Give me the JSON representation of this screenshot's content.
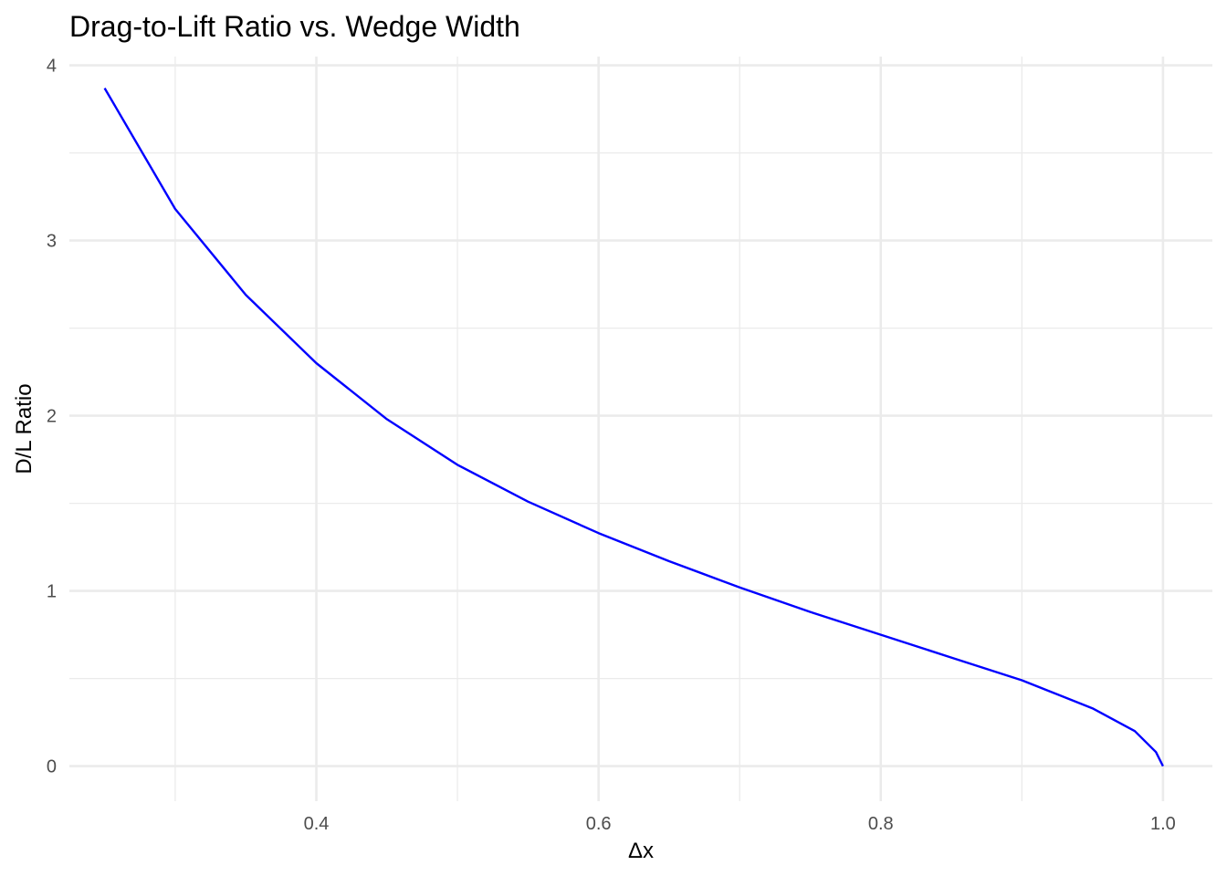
{
  "chart_data": {
    "type": "line",
    "title": "Drag-to-Lift Ratio vs. Wedge Width",
    "xlabel": "Δx",
    "ylabel": "D/L Ratio",
    "xlim": [
      0.225,
      1.035
    ],
    "ylim": [
      -0.2,
      4.05
    ],
    "x_ticks": [
      0.4,
      0.6,
      0.8,
      1.0
    ],
    "x_tick_labels": [
      "0.4",
      "0.6",
      "0.8",
      "1.0"
    ],
    "x_minor_ticks": [
      0.3,
      0.5,
      0.7,
      0.9
    ],
    "y_ticks": [
      0,
      1,
      2,
      3,
      4
    ],
    "y_tick_labels": [
      "0",
      "1",
      "2",
      "3",
      "4"
    ],
    "y_minor_ticks": [
      0.5,
      1.5,
      2.5,
      3.5
    ],
    "grid": true,
    "series": [
      {
        "color": "#0000ff",
        "x": [
          0.25,
          0.3,
          0.35,
          0.4,
          0.45,
          0.5,
          0.55,
          0.6,
          0.65,
          0.7,
          0.75,
          0.8,
          0.85,
          0.9,
          0.95,
          0.98,
          0.995,
          1.0
        ],
        "y": [
          3.87,
          3.18,
          2.69,
          2.3,
          1.98,
          1.72,
          1.51,
          1.33,
          1.17,
          1.02,
          0.88,
          0.75,
          0.62,
          0.49,
          0.33,
          0.2,
          0.08,
          0.0
        ]
      }
    ]
  }
}
